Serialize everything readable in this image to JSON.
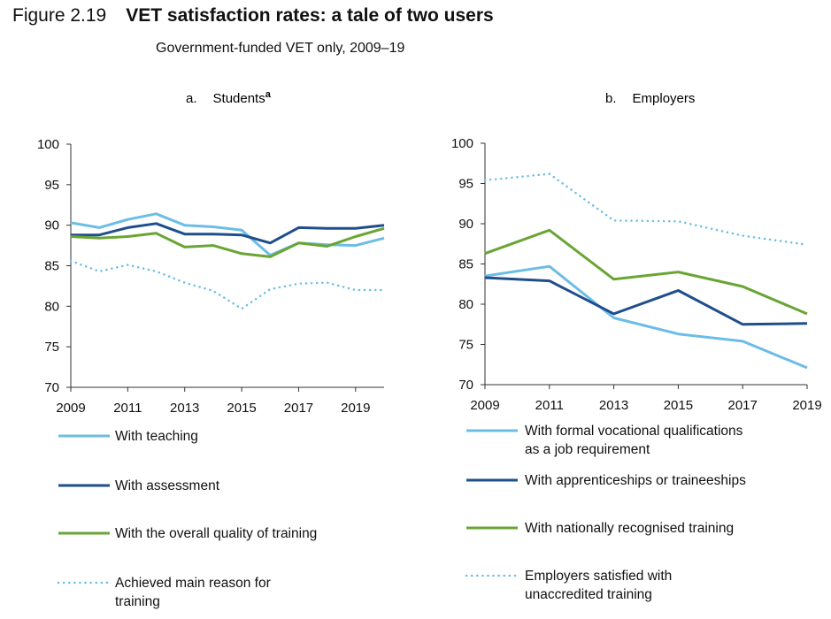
{
  "figure": {
    "number": "Figure 2.19",
    "title": "VET satisfaction rates: a tale of two users",
    "subtitle": "Government-funded VET only, 2009–19"
  },
  "chart_data": [
    {
      "type": "line",
      "panel_letter": "a.",
      "title": "Students",
      "title_note": "a",
      "ylim": [
        70,
        100
      ],
      "yticks": [
        70,
        75,
        80,
        85,
        90,
        95,
        100
      ],
      "xlim": [
        2009,
        2020
      ],
      "xticks": [
        2009,
        2011,
        2013,
        2015,
        2017,
        2019
      ],
      "series": [
        {
          "name": "With teaching",
          "color": "#6cbde6",
          "style": "solid",
          "x": [
            2009,
            2010,
            2011,
            2012,
            2013,
            2014,
            2015,
            2016,
            2017,
            2018,
            2019,
            2020
          ],
          "y": [
            90.3,
            89.7,
            90.7,
            91.4,
            90.0,
            89.8,
            89.4,
            86.3,
            87.8,
            87.6,
            87.5,
            88.4
          ]
        },
        {
          "name": "With assessment",
          "color": "#1f4e8c",
          "style": "solid",
          "x": [
            2009,
            2010,
            2011,
            2012,
            2013,
            2014,
            2015,
            2016,
            2017,
            2018,
            2019,
            2020
          ],
          "y": [
            88.8,
            88.8,
            89.7,
            90.2,
            88.9,
            88.9,
            88.8,
            87.8,
            89.7,
            89.6,
            89.6,
            90.0
          ]
        },
        {
          "name": "With the overall quality of training",
          "color": "#6aa534",
          "style": "solid",
          "x": [
            2009,
            2010,
            2011,
            2012,
            2013,
            2014,
            2015,
            2016,
            2017,
            2018,
            2019,
            2020
          ],
          "y": [
            88.6,
            88.4,
            88.6,
            89.0,
            87.3,
            87.5,
            86.5,
            86.1,
            87.8,
            87.4,
            88.6,
            89.6
          ]
        },
        {
          "name": "Achieved main reason for training",
          "color": "#6cbde6",
          "style": "dotted",
          "x": [
            2009,
            2010,
            2011,
            2012,
            2013,
            2014,
            2015,
            2016,
            2017,
            2018,
            2019,
            2020
          ],
          "y": [
            85.6,
            84.3,
            85.1,
            84.3,
            82.9,
            81.9,
            79.7,
            82.1,
            82.8,
            82.9,
            82.0,
            82.0
          ]
        }
      ]
    },
    {
      "type": "line",
      "panel_letter": "b.",
      "title": "Employers",
      "ylim": [
        70,
        100
      ],
      "yticks": [
        70,
        75,
        80,
        85,
        90,
        95,
        100
      ],
      "xlim": [
        2009,
        2019
      ],
      "xticks": [
        2009,
        2011,
        2013,
        2015,
        2017,
        2019
      ],
      "series": [
        {
          "name": "With formal vocational qualifications as a job requirement",
          "color": "#6cbde6",
          "style": "solid",
          "x": [
            2009,
            2011,
            2013,
            2015,
            2017,
            2019
          ],
          "y": [
            83.5,
            84.7,
            78.3,
            76.3,
            75.4,
            72.1
          ]
        },
        {
          "name": "With apprenticeships or traineeships",
          "color": "#1f4e8c",
          "style": "solid",
          "x": [
            2009,
            2011,
            2013,
            2015,
            2017,
            2019
          ],
          "y": [
            83.3,
            82.9,
            78.8,
            81.7,
            77.5,
            77.6
          ]
        },
        {
          "name": "With nationally recognised training",
          "color": "#6aa534",
          "style": "solid",
          "x": [
            2009,
            2011,
            2013,
            2015,
            2017,
            2019
          ],
          "y": [
            86.3,
            89.2,
            83.1,
            84.0,
            82.2,
            78.8
          ]
        },
        {
          "name": "Employers satisfied with unaccredited training",
          "color": "#6cbde6",
          "style": "dotted",
          "x": [
            2009,
            2011,
            2013,
            2015,
            2017,
            2019
          ],
          "y": [
            95.4,
            96.2,
            90.4,
            90.3,
            88.5,
            87.4
          ]
        }
      ]
    }
  ],
  "legend_a": [
    {
      "lines": [
        "With teaching"
      ]
    },
    {
      "lines": [
        "With assessment"
      ]
    },
    {
      "lines": [
        "With the overall quality of training"
      ]
    },
    {
      "lines": [
        "Achieved main reason for",
        "training"
      ]
    }
  ],
  "legend_b": [
    {
      "lines": [
        "With formal vocational qualifications",
        "as a job requirement"
      ]
    },
    {
      "lines": [
        "With apprenticeships or traineeships"
      ]
    },
    {
      "lines": [
        "With nationally recognised training"
      ]
    },
    {
      "lines": [
        "Employers satisfied with",
        "unaccredited training"
      ]
    }
  ]
}
